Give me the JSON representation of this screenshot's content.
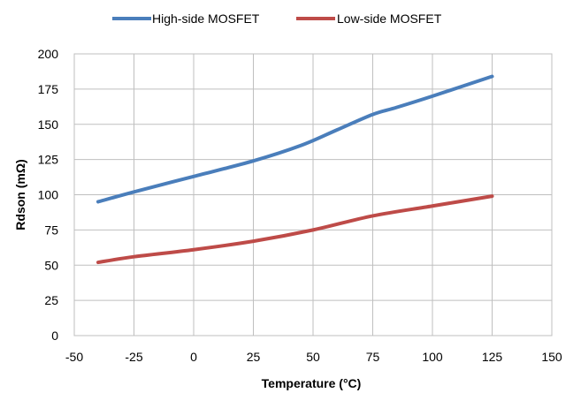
{
  "chart_data": {
    "type": "line",
    "xlabel": "Temperature (°C)",
    "ylabel": "Rdson (mΩ)",
    "xlim": [
      -50,
      150
    ],
    "ylim": [
      0,
      200
    ],
    "x_ticks": [
      "-50",
      "-25",
      "0",
      "25",
      "50",
      "75",
      "100",
      "125",
      "150"
    ],
    "y_ticks": [
      "0",
      "25",
      "50",
      "75",
      "100",
      "125",
      "150",
      "175",
      "200"
    ],
    "grid": true,
    "legend_position": "top",
    "series": [
      {
        "name": "High-side MOSFET",
        "color": "#4a7ebb",
        "x": [
          -40,
          -25,
          0,
          25,
          45,
          60,
          75,
          85,
          100,
          125
        ],
        "y": [
          95,
          102,
          113,
          124,
          135,
          146,
          157,
          162,
          170,
          184
        ]
      },
      {
        "name": "Low-side MOSFET",
        "color": "#be4b48",
        "x": [
          -40,
          -25,
          0,
          25,
          50,
          75,
          100,
          125
        ],
        "y": [
          52,
          56,
          61,
          67,
          75,
          85,
          92,
          99
        ]
      }
    ]
  }
}
